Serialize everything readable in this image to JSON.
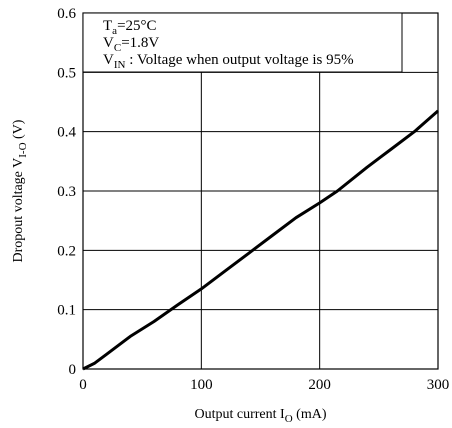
{
  "chart_data": {
    "type": "line",
    "annotation": {
      "line1_main": "T",
      "line1_sub": "a",
      "line1_rest": "=25°C",
      "line2_main": "V",
      "line2_sub": "C",
      "line2_rest": "=1.8V",
      "line3_main": "V",
      "line3_sub": "IN",
      "line3_rest": " : Voltage when output voltage is 95%"
    },
    "xlabel": {
      "main": "Output current I",
      "sub": "O",
      "rest": " (mA)"
    },
    "ylabel": {
      "main": "Dropout voltage V",
      "sub": "I-O",
      "rest": " (V)"
    },
    "xlim": [
      0,
      300
    ],
    "ylim": [
      0,
      0.6
    ],
    "x_ticks": [
      "0",
      "100",
      "200",
      "300"
    ],
    "y_ticks": [
      "0",
      "0.1",
      "0.2",
      "0.3",
      "0.4",
      "0.5",
      "0.6"
    ],
    "grid": true,
    "series": [
      {
        "x": [
          0,
          10,
          20,
          40,
          60,
          80,
          100,
          120,
          140,
          160,
          180,
          200,
          215,
          240,
          260,
          280,
          300
        ],
        "y": [
          0,
          0.01,
          0.025,
          0.055,
          0.08,
          0.108,
          0.135,
          0.165,
          0.195,
          0.225,
          0.255,
          0.28,
          0.3,
          0.34,
          0.37,
          0.4,
          0.435
        ]
      }
    ]
  }
}
